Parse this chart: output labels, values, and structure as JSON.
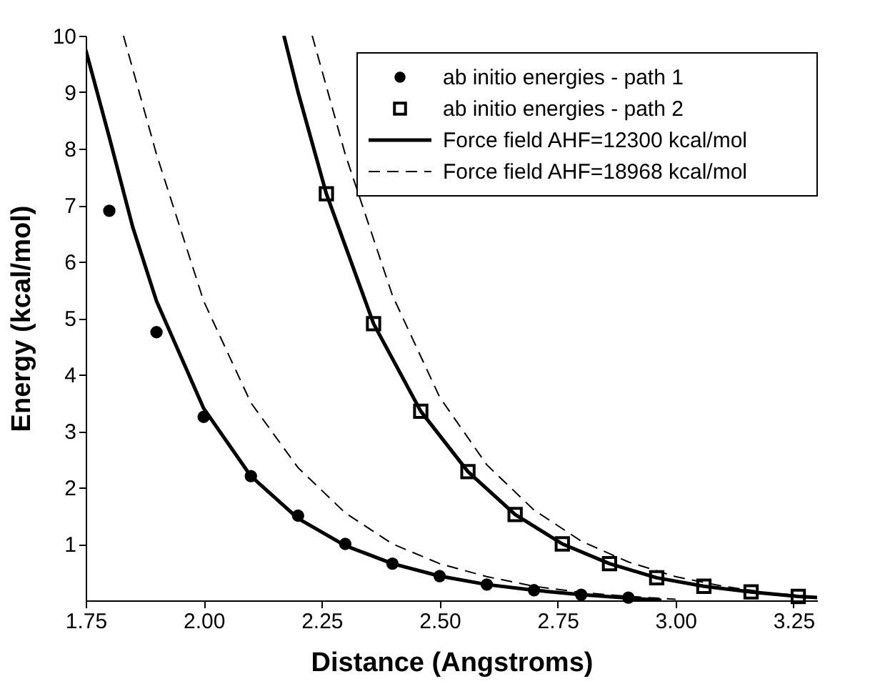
{
  "chart_data": {
    "type": "line",
    "xlabel": "Distance (Angstroms)",
    "ylabel": "Energy (kcal/mol)",
    "xlim": [
      1.75,
      3.3
    ],
    "xticks": [
      1.75,
      {
        "value": 2.0,
        "label": "2.00"
      },
      2.25,
      {
        "value": 2.5,
        "label": "2.50"
      },
      2.75,
      {
        "value": 3.0,
        "label": "3.00"
      },
      3.25
    ],
    "ylim": [
      0,
      10
    ],
    "yticks": [
      1,
      2,
      3,
      4,
      5,
      6,
      7,
      8,
      9,
      10
    ],
    "grid": false,
    "legend": "top right",
    "series": [
      {
        "name": "ab initio energies - path 1",
        "type": "scatter",
        "marker": "circle",
        "color": "#000000",
        "x": [
          1.8,
          1.9,
          2.0,
          2.1,
          2.2,
          2.3,
          2.4,
          2.5,
          2.6,
          2.7,
          2.8,
          2.9
        ],
        "values": [
          6.9,
          4.75,
          3.25,
          2.2,
          1.5,
          1.0,
          0.65,
          0.43,
          0.28,
          0.18,
          0.1,
          0.05
        ]
      },
      {
        "name": "ab initio energies - path 2",
        "type": "scatter",
        "marker": "square",
        "color": "#000000",
        "x": [
          2.26,
          2.36,
          2.46,
          2.56,
          2.66,
          2.76,
          2.86,
          2.96,
          3.06,
          3.16,
          3.26
        ],
        "values": [
          7.2,
          4.9,
          3.35,
          2.28,
          1.52,
          1.0,
          0.65,
          0.4,
          0.25,
          0.15,
          0.07
        ]
      },
      {
        "name": "Force field AHF=12300 kcal/mol",
        "line_style": "solid",
        "color": "#000000",
        "x": [
          1.75,
          1.8,
          1.85,
          1.9,
          2.0,
          2.1,
          2.2,
          2.3,
          2.4,
          2.5,
          2.6,
          2.7,
          2.8,
          2.9,
          2.97
        ],
        "values": [
          9.75,
          8.2,
          6.6,
          5.3,
          3.4,
          2.2,
          1.45,
          0.97,
          0.65,
          0.43,
          0.28,
          0.18,
          0.1,
          0.04,
          0
        ]
      },
      {
        "line_style": "solid",
        "color": "#000000",
        "x": [
          2.17,
          2.2,
          2.26,
          2.36,
          2.46,
          2.56,
          2.66,
          2.76,
          2.86,
          2.96,
          3.06,
          3.16,
          3.26,
          3.3
        ],
        "values": [
          10,
          9.0,
          7.2,
          4.9,
          3.35,
          2.28,
          1.52,
          1.0,
          0.65,
          0.4,
          0.25,
          0.15,
          0.07,
          0.05
        ]
      },
      {
        "name": "Force field AHF=18968 kcal/mol",
        "line_style": "dashed",
        "color": "#000000",
        "x": [
          1.83,
          1.9,
          2.0,
          2.1,
          2.2,
          2.3,
          2.4,
          2.5,
          2.6,
          2.7,
          2.8,
          2.9,
          3.0
        ],
        "values": [
          10,
          7.9,
          5.3,
          3.5,
          2.35,
          1.55,
          1.0,
          0.65,
          0.42,
          0.25,
          0.14,
          0.07,
          0.02
        ]
      },
      {
        "line_style": "dashed",
        "color": "#000000",
        "x": [
          2.23,
          2.3,
          2.4,
          2.5,
          2.6,
          2.7,
          2.8,
          2.9,
          3.0,
          3.1,
          3.2,
          3.3
        ],
        "values": [
          10,
          7.9,
          5.4,
          3.6,
          2.4,
          1.6,
          1.05,
          0.68,
          0.42,
          0.25,
          0.13,
          0.06
        ]
      }
    ]
  }
}
